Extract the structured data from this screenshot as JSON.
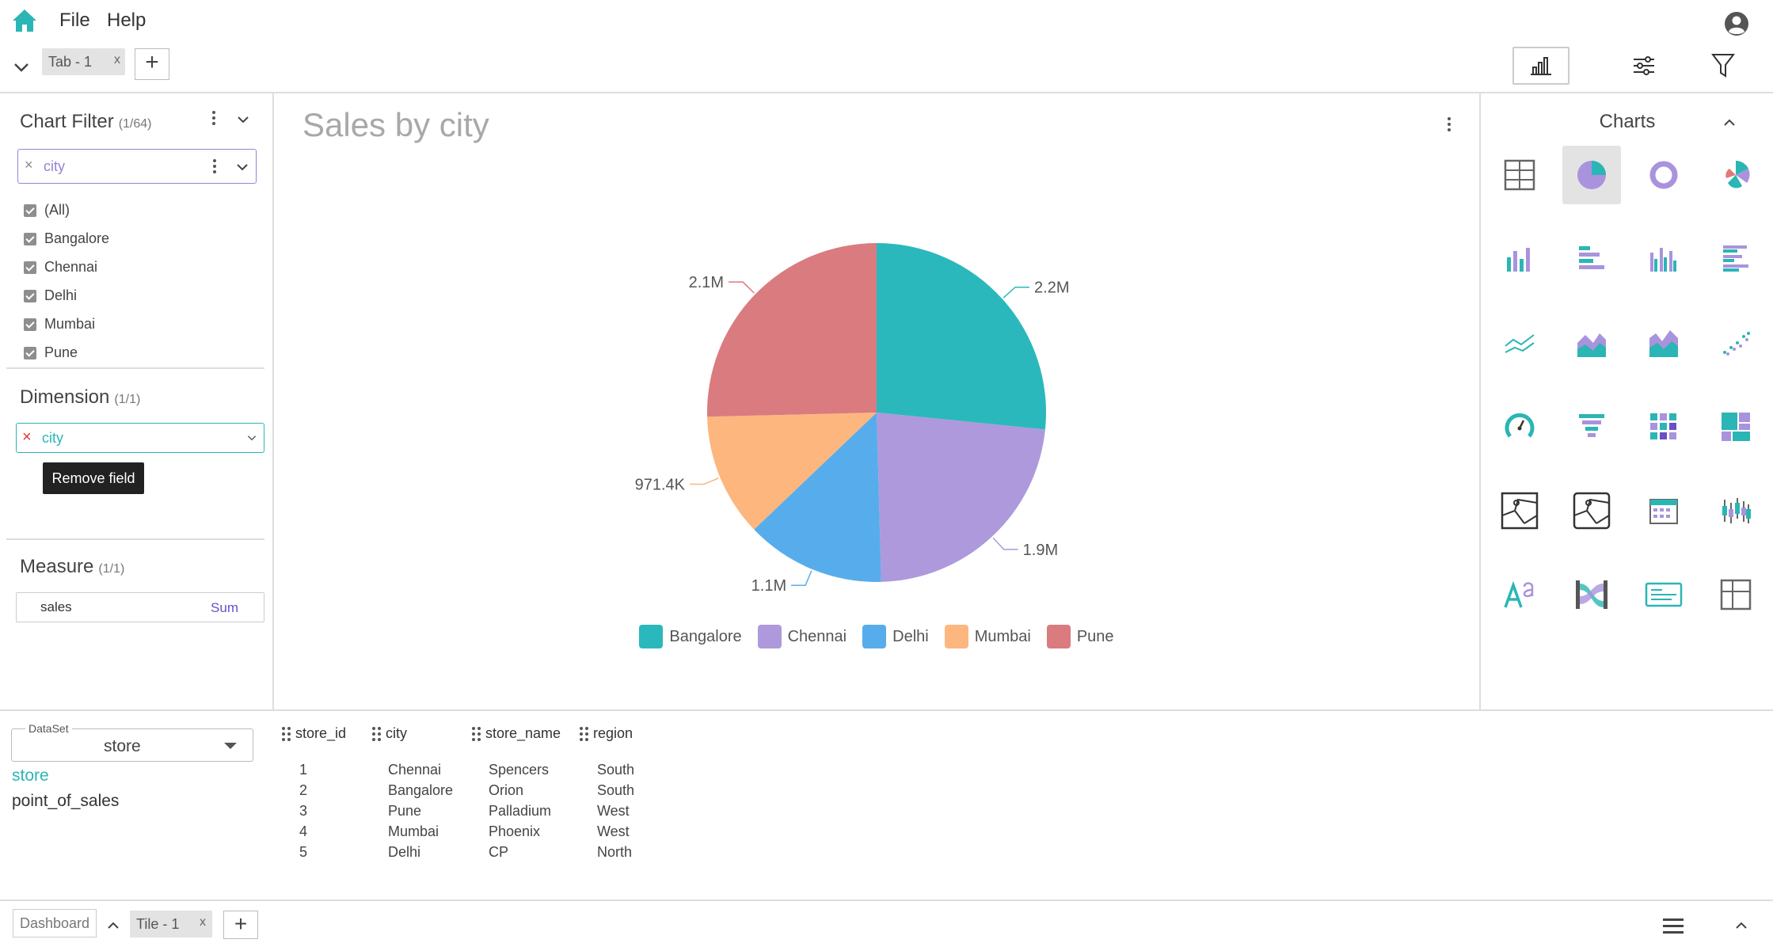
{
  "menubar": {
    "file": "File",
    "help": "Help"
  },
  "tabs": {
    "items": [
      {
        "label": "Tab - 1",
        "close": "x"
      }
    ],
    "add": "+"
  },
  "chart_filter": {
    "title": "Chart Filter",
    "count": "(1/64)",
    "field": {
      "clear": "×",
      "value": "city"
    },
    "options": [
      "(All)",
      "Bangalore",
      "Chennai",
      "Delhi",
      "Mumbai",
      "Pune"
    ]
  },
  "dimension": {
    "title": "Dimension",
    "count": "(1/1)",
    "remove": "×",
    "value": "city",
    "tooltip": "Remove field"
  },
  "measure": {
    "title": "Measure",
    "count": "(1/1)",
    "field": "sales",
    "aggregation": "Sum"
  },
  "chart": {
    "title": "Sales by city"
  },
  "chart_data": {
    "type": "pie",
    "title": "Sales by city",
    "categories": [
      "Bangalore",
      "Chennai",
      "Delhi",
      "Mumbai",
      "Pune"
    ],
    "values": [
      2200000,
      1900000,
      1100000,
      971400,
      2100000
    ],
    "labels": [
      "2.2M",
      "1.9M",
      "1.1M",
      "971.4K",
      "2.1M"
    ],
    "colors": [
      "#2bb8bc",
      "#ad99db",
      "#57adeb",
      "#fdb67e",
      "#d97b7f"
    ],
    "legend_position": "bottom"
  },
  "charts_panel": {
    "title": "Charts"
  },
  "dataset": {
    "label": "DataSet",
    "selected": "store",
    "tables": [
      {
        "name": "store"
      },
      {
        "name": "point_of_sales"
      }
    ]
  },
  "table": {
    "columns": [
      "store_id",
      "city",
      "store_name",
      "region"
    ],
    "rows": [
      [
        "1",
        "Chennai",
        "Spencers",
        "South"
      ],
      [
        "2",
        "Bangalore",
        "Orion",
        "South"
      ],
      [
        "3",
        "Pune",
        "Palladium",
        "West"
      ],
      [
        "4",
        "Mumbai",
        "Phoenix",
        "West"
      ],
      [
        "5",
        "Delhi",
        "CP",
        "North"
      ]
    ]
  },
  "bottombar": {
    "dashboard": "Dashboard",
    "tile": "Tile - 1",
    "tile_close": "x",
    "add": "+"
  }
}
